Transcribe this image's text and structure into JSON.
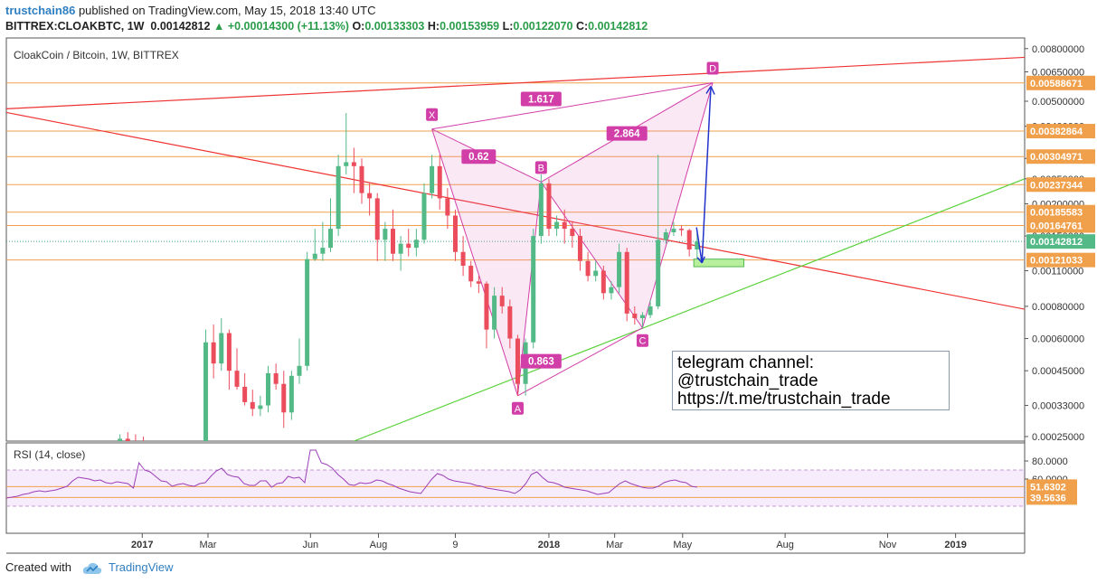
{
  "header": {
    "user": "trustchain86",
    "published": "published on TradingView.com, May 15, 2018 13:40 UTC",
    "symbol": "BITTREX:CLOAKBTC, 1W",
    "price": "0.00142812",
    "change": "+0.00014300 (+11.13%)",
    "o_label": "O:",
    "o_value": "0.00133303",
    "h_label": "H:",
    "h_value": "0.00153959",
    "l_label": "L:",
    "l_value": "0.00122070",
    "c_label": "C:",
    "c_value": "0.00142812"
  },
  "footer": {
    "created_with": "Created with",
    "brand": "TradingView"
  },
  "colors": {
    "bull": "#53b987",
    "bear": "#eb4d5c",
    "level": "#f0a04b",
    "pattern": "#d23ea8",
    "rsi": "#9b3fb6",
    "support": "#5ad13a",
    "resistance": "#ee3333"
  },
  "chart_data": [
    {
      "type": "candlestick",
      "title": "CloakCoin / Bitcoin, 1W, BITTREX",
      "y_scale": "log",
      "ylim": [
        0.00024,
        0.0088
      ],
      "y_ticks": [
        0.008,
        0.0065,
        0.005,
        0.004,
        0.003,
        0.0025,
        0.002,
        0.0015,
        0.0011,
        0.0008,
        0.0006,
        0.00045,
        0.00033,
        0.00025
      ],
      "y_tick_labels": [
        "0.00800000",
        "0.00650000",
        "0.00500000",
        "0.00400000",
        "0.00300000",
        "0.00250000",
        "0.00200000",
        "0.00150000",
        "0.00110000",
        "0.00080000",
        "0.00060000",
        "0.00045000",
        "0.00033000",
        "0.00025000"
      ],
      "x_labels": [
        {
          "label": "2017",
          "date": "2017-01-01"
        },
        {
          "label": "Mar",
          "date": "2017-03-01"
        },
        {
          "label": "Jun",
          "date": "2017-06-01"
        },
        {
          "label": "Aug",
          "date": "2017-08-01"
        },
        {
          "label": "9",
          "date": "2017-10-09"
        },
        {
          "label": "2018",
          "date": "2018-01-01"
        },
        {
          "label": "Mar",
          "date": "2018-03-01"
        },
        {
          "label": "May",
          "date": "2018-05-01"
        },
        {
          "label": "Aug",
          "date": "2018-08-01"
        },
        {
          "label": "Nov",
          "date": "2018-11-01"
        },
        {
          "label": "2019",
          "date": "2019-01-01"
        }
      ],
      "price_levels": [
        {
          "value": 0.00588671,
          "label": "0.00588671"
        },
        {
          "value": 0.00382864,
          "label": "0.00382864"
        },
        {
          "value": 0.00304971,
          "label": "0.00304971"
        },
        {
          "value": 0.00237344,
          "label": "0.00237344"
        },
        {
          "value": 0.00185583,
          "label": "0.00185583"
        },
        {
          "value": 0.00164761,
          "label": "0.00164761"
        },
        {
          "value": 0.00121033,
          "label": "0.00121033"
        }
      ],
      "last_price": {
        "value": 0.00142812,
        "label": "0.00142812"
      },
      "candles": [
        {
          "date": "2016-12-12",
          "o": 0.000225,
          "h": 0.000255,
          "l": 0.000215,
          "c": 0.000245
        },
        {
          "date": "2016-12-19",
          "o": 0.000245,
          "h": 0.00026,
          "l": 0.00023,
          "c": 0.00024
        },
        {
          "date": "2016-12-26",
          "o": 0.00024,
          "h": 0.000255,
          "l": 0.00023,
          "c": 0.000235
        },
        {
          "date": "2017-01-02",
          "o": 0.000235,
          "h": 0.00025,
          "l": 0.000225,
          "c": 0.00023
        },
        {
          "date": "2017-01-09",
          "o": 0.00023,
          "h": 0.00024,
          "l": 0.00022,
          "c": 0.000225
        },
        {
          "date": "2017-01-16",
          "o": 0.000225,
          "h": 0.000235,
          "l": 0.000215,
          "c": 0.00022
        },
        {
          "date": "2017-01-23",
          "o": 0.00022,
          "h": 0.00023,
          "l": 0.00021,
          "c": 0.000215
        },
        {
          "date": "2017-01-30",
          "o": 0.000215,
          "h": 0.000225,
          "l": 0.000205,
          "c": 0.00021
        },
        {
          "date": "2017-02-06",
          "o": 0.00021,
          "h": 0.00022,
          "l": 0.0002,
          "c": 0.000205
        },
        {
          "date": "2017-02-13",
          "o": 0.000205,
          "h": 0.00022,
          "l": 0.000195,
          "c": 0.00021
        },
        {
          "date": "2017-02-20",
          "o": 0.00021,
          "h": 0.00023,
          "l": 0.0002,
          "c": 0.000205
        },
        {
          "date": "2017-02-27",
          "o": 0.000205,
          "h": 0.00065,
          "l": 0.0002,
          "c": 0.00058
        },
        {
          "date": "2017-03-06",
          "o": 0.00058,
          "h": 0.00068,
          "l": 0.00042,
          "c": 0.00048
        },
        {
          "date": "2017-03-13",
          "o": 0.00048,
          "h": 0.00072,
          "l": 0.00045,
          "c": 0.00063
        },
        {
          "date": "2017-03-20",
          "o": 0.00063,
          "h": 0.00065,
          "l": 0.00038,
          "c": 0.00045
        },
        {
          "date": "2017-03-27",
          "o": 0.00045,
          "h": 0.00055,
          "l": 0.00038,
          "c": 0.00039
        },
        {
          "date": "2017-04-03",
          "o": 0.00039,
          "h": 0.00044,
          "l": 0.00033,
          "c": 0.00034
        },
        {
          "date": "2017-04-10",
          "o": 0.00034,
          "h": 0.00038,
          "l": 0.0003,
          "c": 0.00032
        },
        {
          "date": "2017-04-17",
          "o": 0.00032,
          "h": 0.00036,
          "l": 0.0003,
          "c": 0.00033
        },
        {
          "date": "2017-04-24",
          "o": 0.00033,
          "h": 0.00047,
          "l": 0.00031,
          "c": 0.00044
        },
        {
          "date": "2017-05-01",
          "o": 0.00044,
          "h": 0.00048,
          "l": 0.00038,
          "c": 0.0004
        },
        {
          "date": "2017-05-08",
          "o": 0.0004,
          "h": 0.00045,
          "l": 0.00027,
          "c": 0.00031
        },
        {
          "date": "2017-05-15",
          "o": 0.00031,
          "h": 0.00045,
          "l": 0.00029,
          "c": 0.00043
        },
        {
          "date": "2017-05-22",
          "o": 0.00043,
          "h": 0.0006,
          "l": 0.0004,
          "c": 0.00047
        },
        {
          "date": "2017-05-29",
          "o": 0.00047,
          "h": 0.0013,
          "l": 0.00045,
          "c": 0.00122
        },
        {
          "date": "2017-06-05",
          "o": 0.00122,
          "h": 0.0016,
          "l": 0.0012,
          "c": 0.00128
        },
        {
          "date": "2017-06-12",
          "o": 0.00128,
          "h": 0.0017,
          "l": 0.0012,
          "c": 0.00135
        },
        {
          "date": "2017-06-19",
          "o": 0.00135,
          "h": 0.0021,
          "l": 0.0013,
          "c": 0.0016
        },
        {
          "date": "2017-06-26",
          "o": 0.0016,
          "h": 0.0031,
          "l": 0.0015,
          "c": 0.0028
        },
        {
          "date": "2017-07-03",
          "o": 0.0028,
          "h": 0.0045,
          "l": 0.0026,
          "c": 0.0029
        },
        {
          "date": "2017-07-10",
          "o": 0.0029,
          "h": 0.0033,
          "l": 0.0022,
          "c": 0.0028
        },
        {
          "date": "2017-07-17",
          "o": 0.0028,
          "h": 0.003,
          "l": 0.002,
          "c": 0.0022
        },
        {
          "date": "2017-07-24",
          "o": 0.0022,
          "h": 0.0024,
          "l": 0.0018,
          "c": 0.0021
        },
        {
          "date": "2017-07-31",
          "o": 0.0021,
          "h": 0.0022,
          "l": 0.0012,
          "c": 0.00145
        },
        {
          "date": "2017-08-07",
          "o": 0.00145,
          "h": 0.0017,
          "l": 0.0012,
          "c": 0.0016
        },
        {
          "date": "2017-08-14",
          "o": 0.0016,
          "h": 0.0019,
          "l": 0.0012,
          "c": 0.00128
        },
        {
          "date": "2017-08-21",
          "o": 0.00128,
          "h": 0.0015,
          "l": 0.0011,
          "c": 0.0014
        },
        {
          "date": "2017-08-28",
          "o": 0.0014,
          "h": 0.0016,
          "l": 0.00125,
          "c": 0.00135
        },
        {
          "date": "2017-09-04",
          "o": 0.00135,
          "h": 0.0016,
          "l": 0.00125,
          "c": 0.00145
        },
        {
          "date": "2017-09-11",
          "o": 0.00145,
          "h": 0.0024,
          "l": 0.0014,
          "c": 0.0022
        },
        {
          "date": "2017-09-18",
          "o": 0.0022,
          "h": 0.0031,
          "l": 0.0021,
          "c": 0.0028
        },
        {
          "date": "2017-09-25",
          "o": 0.0028,
          "h": 0.0031,
          "l": 0.0019,
          "c": 0.0021
        },
        {
          "date": "2017-10-02",
          "o": 0.0021,
          "h": 0.0023,
          "l": 0.0016,
          "c": 0.0018
        },
        {
          "date": "2017-10-09",
          "o": 0.0018,
          "h": 0.0019,
          "l": 0.0012,
          "c": 0.0013
        },
        {
          "date": "2017-10-16",
          "o": 0.0013,
          "h": 0.0015,
          "l": 0.00105,
          "c": 0.00115
        },
        {
          "date": "2017-10-23",
          "o": 0.00115,
          "h": 0.0012,
          "l": 0.00095,
          "c": 0.001
        },
        {
          "date": "2017-10-30",
          "o": 0.001,
          "h": 0.00105,
          "l": 0.0009,
          "c": 0.00098
        },
        {
          "date": "2017-11-06",
          "o": 0.00098,
          "h": 0.001,
          "l": 0.00055,
          "c": 0.00065
        },
        {
          "date": "2017-11-13",
          "o": 0.00065,
          "h": 0.00095,
          "l": 0.0006,
          "c": 0.00088
        },
        {
          "date": "2017-11-20",
          "o": 0.00088,
          "h": 0.00095,
          "l": 0.00075,
          "c": 0.0008
        },
        {
          "date": "2017-11-27",
          "o": 0.0008,
          "h": 0.00085,
          "l": 0.00055,
          "c": 0.0006
        },
        {
          "date": "2017-12-04",
          "o": 0.0006,
          "h": 0.00062,
          "l": 0.00036,
          "c": 0.0004
        },
        {
          "date": "2017-12-11",
          "o": 0.0004,
          "h": 0.0006,
          "l": 0.00036,
          "c": 0.00058
        },
        {
          "date": "2017-12-18",
          "o": 0.00058,
          "h": 0.0016,
          "l": 0.00055,
          "c": 0.0015
        },
        {
          "date": "2017-12-25",
          "o": 0.0015,
          "h": 0.0026,
          "l": 0.0014,
          "c": 0.0024
        },
        {
          "date": "2018-01-01",
          "o": 0.0024,
          "h": 0.0025,
          "l": 0.0015,
          "c": 0.0016
        },
        {
          "date": "2018-01-08",
          "o": 0.0016,
          "h": 0.0018,
          "l": 0.0015,
          "c": 0.0017
        },
        {
          "date": "2018-01-15",
          "o": 0.0017,
          "h": 0.0019,
          "l": 0.0014,
          "c": 0.0016
        },
        {
          "date": "2018-01-22",
          "o": 0.0016,
          "h": 0.0017,
          "l": 0.00135,
          "c": 0.0015
        },
        {
          "date": "2018-01-29",
          "o": 0.0015,
          "h": 0.0016,
          "l": 0.0011,
          "c": 0.0012
        },
        {
          "date": "2018-02-05",
          "o": 0.0012,
          "h": 0.0013,
          "l": 0.001,
          "c": 0.00105
        },
        {
          "date": "2018-02-12",
          "o": 0.00105,
          "h": 0.0012,
          "l": 0.001,
          "c": 0.0011
        },
        {
          "date": "2018-02-19",
          "o": 0.0011,
          "h": 0.00115,
          "l": 0.00085,
          "c": 0.0009
        },
        {
          "date": "2018-02-26",
          "o": 0.0009,
          "h": 0.001,
          "l": 0.00085,
          "c": 0.00095
        },
        {
          "date": "2018-03-05",
          "o": 0.00095,
          "h": 0.0014,
          "l": 0.0009,
          "c": 0.0013
        },
        {
          "date": "2018-03-12",
          "o": 0.0013,
          "h": 0.00135,
          "l": 0.0007,
          "c": 0.00075
        },
        {
          "date": "2018-03-19",
          "o": 0.00075,
          "h": 0.0008,
          "l": 0.00068,
          "c": 0.00072
        },
        {
          "date": "2018-03-26",
          "o": 0.00072,
          "h": 0.00076,
          "l": 0.00066,
          "c": 0.00074
        },
        {
          "date": "2018-04-02",
          "o": 0.00074,
          "h": 0.00085,
          "l": 0.00072,
          "c": 0.0008
        },
        {
          "date": "2018-04-09",
          "o": 0.0008,
          "h": 0.0031,
          "l": 0.00078,
          "c": 0.00145
        },
        {
          "date": "2018-04-16",
          "o": 0.00145,
          "h": 0.0016,
          "l": 0.0014,
          "c": 0.00155
        },
        {
          "date": "2018-04-23",
          "o": 0.00155,
          "h": 0.0017,
          "l": 0.0015,
          "c": 0.0016
        },
        {
          "date": "2018-04-30",
          "o": 0.0016,
          "h": 0.00165,
          "l": 0.0015,
          "c": 0.00158
        },
        {
          "date": "2018-05-07",
          "o": 0.00158,
          "h": 0.0016,
          "l": 0.00125,
          "c": 0.00133
        },
        {
          "date": "2018-05-14",
          "o": 0.00133,
          "h": 0.00154,
          "l": 0.00122,
          "c": 0.00143
        }
      ],
      "harmonic_pattern": {
        "points": [
          {
            "label": "X",
            "date": "2017-09-18",
            "value": 0.0039
          },
          {
            "label": "A",
            "date": "2017-12-04",
            "value": 0.00036
          },
          {
            "label": "B",
            "date": "2017-12-25",
            "value": 0.00243
          },
          {
            "label": "C",
            "date": "2018-03-26",
            "value": 0.00066
          },
          {
            "label": "D",
            "date": "2018-05-28",
            "value": 0.0059
          }
        ],
        "ratios": [
          {
            "label": "1.617",
            "date": "2017-12-25",
            "value": 0.0051
          },
          {
            "label": "0.62",
            "date": "2017-10-30",
            "value": 0.00305
          },
          {
            "label": "2.864",
            "date": "2018-03-12",
            "value": 0.00375
          },
          {
            "label": "0.863",
            "date": "2017-12-25",
            "value": 0.00049
          }
        ]
      },
      "trendlines": [
        {
          "name": "resistance-top",
          "color": "#ee3333",
          "from": {
            "date": "2016-08-01",
            "value": 0.0046
          },
          "to": {
            "date": "2019-03-04",
            "value": 0.0074
          }
        },
        {
          "name": "resistance-falling",
          "color": "#ee3333",
          "from": {
            "date": "2016-08-01",
            "value": 0.0048
          },
          "to": {
            "date": "2019-03-04",
            "value": 0.00078
          }
        },
        {
          "name": "support-rising",
          "color": "#5ad13a",
          "from": {
            "date": "2017-07-10",
            "value": 0.00024
          },
          "to": {
            "date": "2019-03-04",
            "value": 0.0025
          }
        }
      ],
      "target_zone": {
        "date_from": "2018-05-07",
        "date_to": "2018-06-25",
        "value_low": 0.00114,
        "value_high": 0.00122
      },
      "annotation": {
        "lines": [
          "telegram channel:",
          "@trustchain_trade",
          "https://t.me/trustchain_trade"
        ]
      }
    },
    {
      "type": "line",
      "title": "RSI (14, close)",
      "ylim": [
        0,
        100
      ],
      "y_ticks": [
        80,
        60
      ],
      "y_tick_labels": [
        "80.0000",
        "60.0000"
      ],
      "band": [
        30,
        70
      ],
      "levels": [
        {
          "value": 51.6302,
          "label": "51.6302"
        },
        {
          "value": 39.5636,
          "label": "39.5636"
        }
      ],
      "series": [
        {
          "values": [
            39,
            40,
            41,
            43,
            44,
            46,
            47,
            46,
            47,
            48,
            50,
            52,
            58,
            62,
            61,
            60,
            58,
            59,
            56,
            55,
            57,
            56,
            55,
            50,
            78,
            70,
            68,
            63,
            58,
            57,
            52,
            54,
            55,
            53,
            52,
            55,
            56,
            63,
            69,
            72,
            65,
            63,
            62,
            55,
            53,
            53,
            58,
            58,
            51,
            55,
            56,
            63,
            61,
            62,
            56,
            92,
            92,
            78,
            76,
            72,
            65,
            60,
            54,
            53,
            56,
            55,
            56,
            59,
            58,
            55,
            53,
            50,
            48,
            46,
            45,
            44,
            52,
            60,
            66,
            64,
            60,
            58,
            57,
            56,
            55,
            53,
            52,
            50,
            49,
            48,
            47,
            46,
            44,
            48,
            55,
            65,
            68,
            62,
            57,
            56,
            54,
            51,
            50,
            49,
            48,
            47,
            45,
            43,
            44,
            45,
            50,
            55,
            58,
            55,
            53,
            51,
            50,
            50,
            52,
            56,
            58,
            59,
            57,
            56,
            52,
            51
          ]
        }
      ]
    }
  ]
}
